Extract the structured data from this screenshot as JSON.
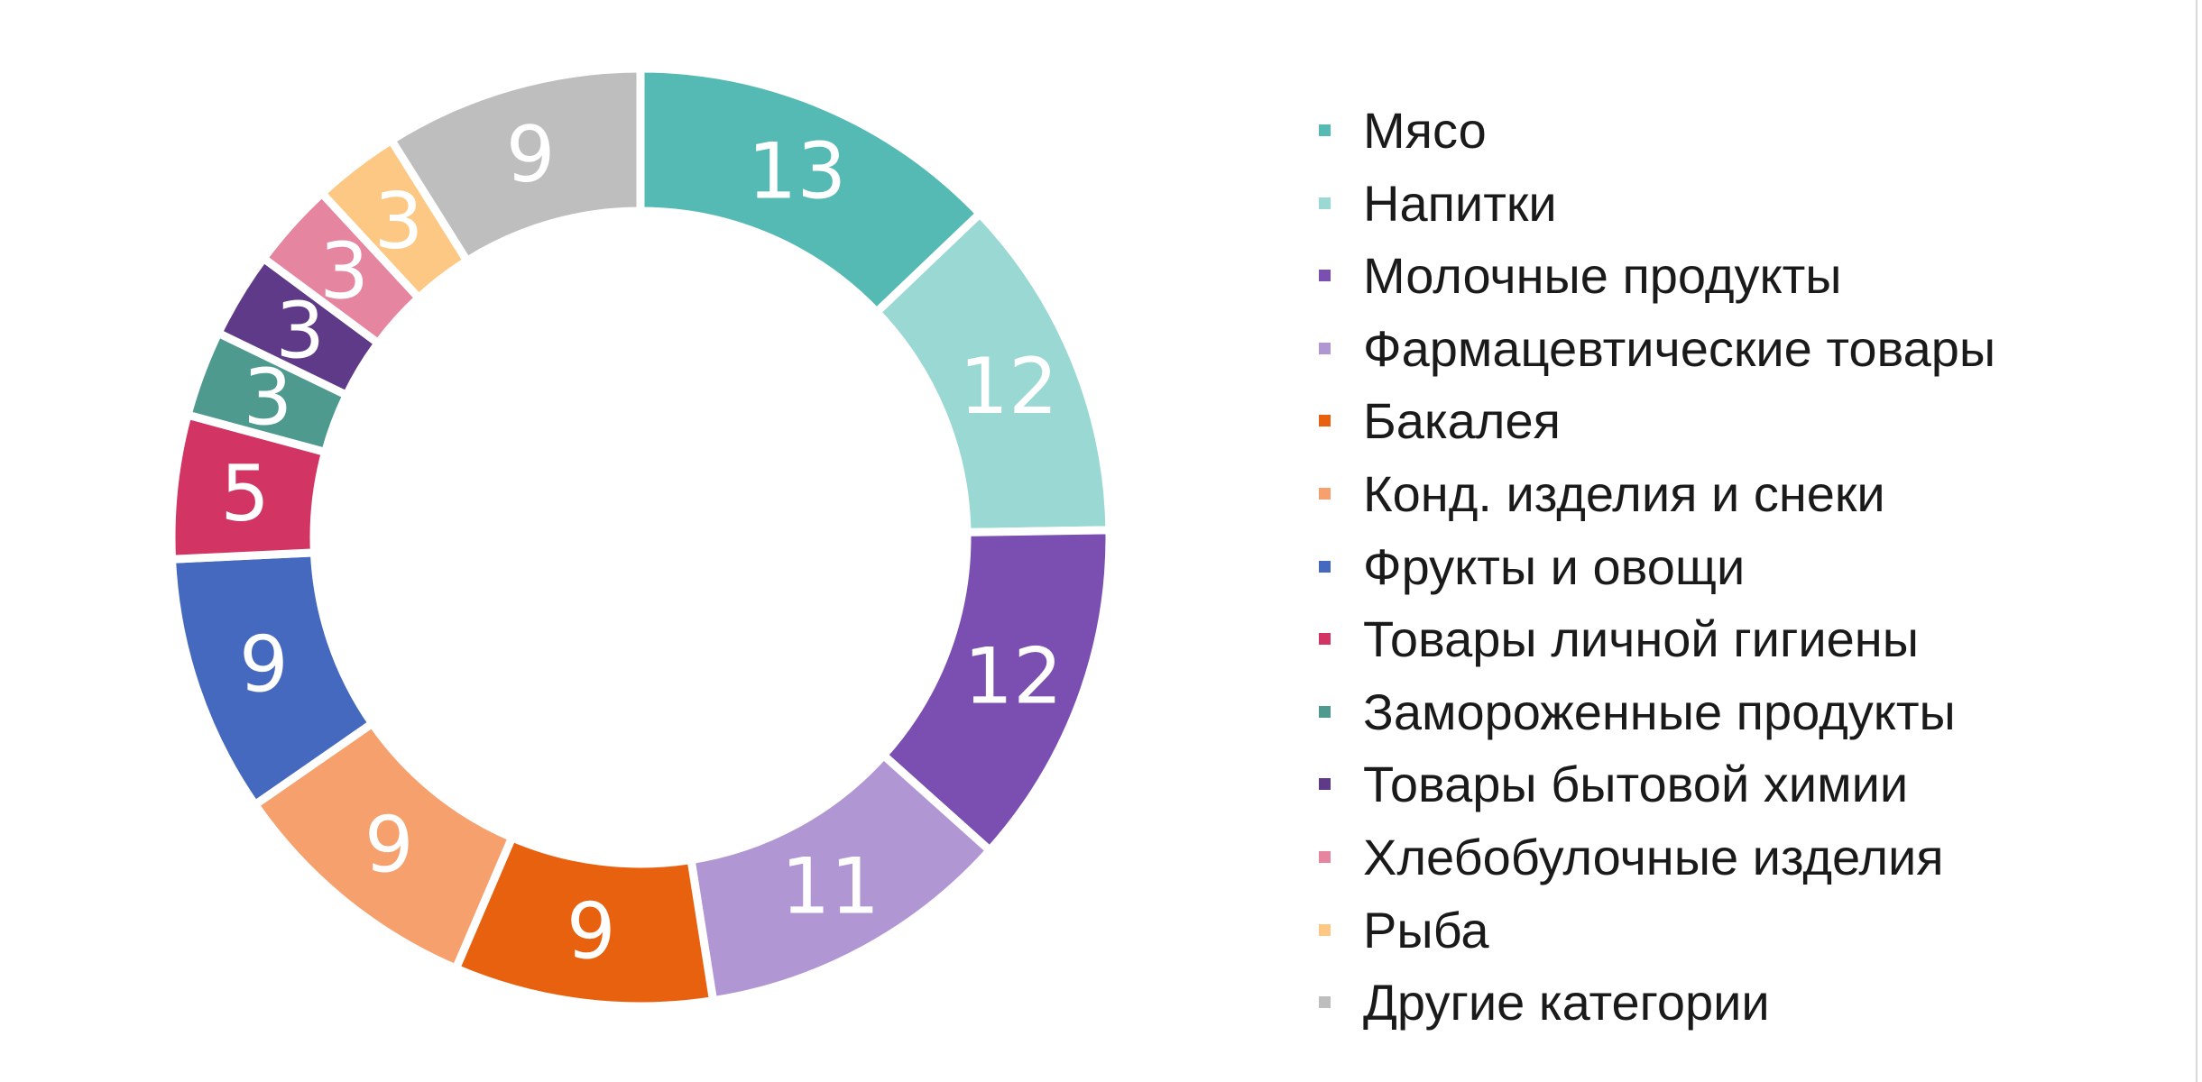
{
  "chart_data": {
    "type": "pie",
    "donut": true,
    "categories": [
      "Мясо",
      "Напитки",
      "Молочные продукты",
      "Фармацевтические товары",
      "Бакалея",
      "Конд. изделия и снеки",
      "Фрукты и овощи",
      "Товары личной гигиены",
      "Замороженные продукты",
      "Товары бытовой химии",
      "Хлебобулочные изделия",
      "Рыба",
      "Другие категории"
    ],
    "values": [
      13,
      12,
      12,
      11,
      9,
      9,
      9,
      5,
      3,
      3,
      3,
      3,
      9
    ],
    "colors": [
      "#56bab4",
      "#9ad8d3",
      "#7b4fb2",
      "#b196d4",
      "#e8610f",
      "#f6a16d",
      "#4469be",
      "#d23563",
      "#4e9a8f",
      "#5f3a88",
      "#e6859f",
      "#fdc883",
      "#bebebe"
    ],
    "data_labels": [
      "13",
      "12",
      "12",
      "11",
      "9",
      "9",
      "9",
      "5",
      "3",
      "3",
      "3",
      "3",
      "9"
    ],
    "legend_position": "right",
    "title": "",
    "xlabel": "",
    "ylabel": ""
  }
}
